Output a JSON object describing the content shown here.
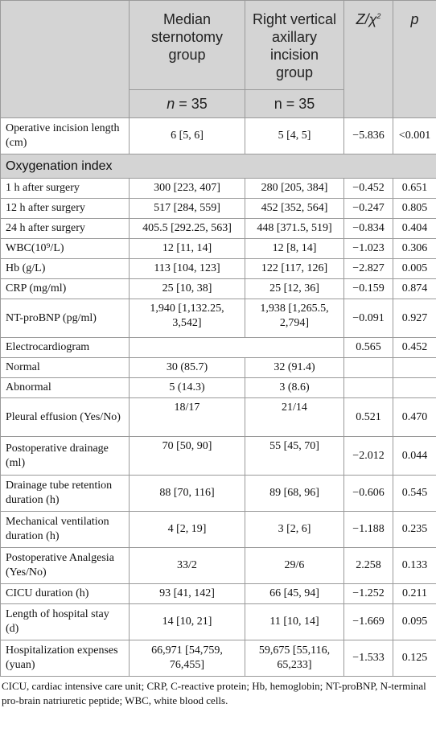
{
  "header": {
    "col1": "",
    "col2": "Median sternotomy group",
    "col3": "Right vertical axillary incision group",
    "col4_stat": "Z/χ²",
    "col5_p": "p",
    "n2": "n = 35",
    "n3": "n = 35"
  },
  "rows": [
    {
      "type": "data",
      "label": "Operative incision length (cm)",
      "median": "6 [5, 6]",
      "axillary": "5 [4, 5]",
      "stat": "−5.836",
      "p": "<0.001",
      "tall": true
    },
    {
      "type": "section",
      "label": "Oxygenation index"
    },
    {
      "type": "data",
      "label": "1 h after surgery",
      "median": "300 [223, 407]",
      "axillary": "280 [205, 384]",
      "stat": "−0.452",
      "p": "0.651"
    },
    {
      "type": "data",
      "label": "12 h after surgery",
      "median": "517 [284, 559]",
      "axillary": "452 [352, 564]",
      "stat": "−0.247",
      "p": "0.805"
    },
    {
      "type": "data",
      "label": "24 h after surgery",
      "median": "405.5 [292.25, 563]",
      "axillary": "448 [371.5, 519]",
      "stat": "−0.834",
      "p": "0.404"
    },
    {
      "type": "data",
      "label": "WBC(10⁹/L)",
      "median": "12 [11, 14]",
      "axillary": "12 [8, 14]",
      "stat": "−1.023",
      "p": "0.306"
    },
    {
      "type": "data",
      "label": "Hb (g/L)",
      "median": "113 [104, 123]",
      "axillary": "122 [117, 126]",
      "stat": "−2.827",
      "p": "0.005"
    },
    {
      "type": "data",
      "label": "CRP (mg/ml)",
      "median": "25 [10, 38]",
      "axillary": "25 [12, 36]",
      "stat": "−0.159",
      "p": "0.874"
    },
    {
      "type": "data",
      "label": "NT-proBNP (pg/ml)",
      "median": "1,940 [1,132.25, 3,542]",
      "axillary": "1,938 [1,265.5, 2,794]",
      "stat": "−0.091",
      "p": "0.927",
      "tall": true,
      "topalign": true
    },
    {
      "type": "data",
      "label": "Electrocardiogram",
      "median": "",
      "axillary": "",
      "stat": "0.565",
      "p": "0.452"
    },
    {
      "type": "data",
      "label": "Normal",
      "median": "30 (85.7)",
      "axillary": "32 (91.4)",
      "stat": "",
      "p": ""
    },
    {
      "type": "data",
      "label": "Abnormal",
      "median": "5 (14.3)",
      "axillary": "3 (8.6)",
      "stat": "",
      "p": ""
    },
    {
      "type": "data",
      "label": "Pleural effusion (Yes/No)",
      "median": "18/17",
      "axillary": "21/14",
      "stat": "0.521",
      "p": "0.470",
      "tall": true,
      "topalign": true
    },
    {
      "type": "data",
      "label": "Postoperative drainage (ml)",
      "median": "70 [50, 90]",
      "axillary": "55 [45, 70]",
      "stat": "−2.012",
      "p": "0.044",
      "tall": true,
      "topalign": true
    },
    {
      "type": "data",
      "label": "Drainage tube retention duration (h)",
      "median": "88 [70, 116]",
      "axillary": "89 [68, 96]",
      "stat": "−0.606",
      "p": "0.545",
      "tall": true
    },
    {
      "type": "data",
      "label": "Mechanical ventilation duration (h)",
      "median": "4 [2, 19]",
      "axillary": "3 [2, 6]",
      "stat": "−1.188",
      "p": "0.235",
      "tall": true
    },
    {
      "type": "data",
      "label": "Postoperative Analgesia (Yes/No)",
      "median": "33/2",
      "axillary": "29/6",
      "stat": "2.258",
      "p": "0.133",
      "tall": true
    },
    {
      "type": "data",
      "label": "CICU duration (h)",
      "median": "93 [41, 142]",
      "axillary": "66 [45, 94]",
      "stat": "−1.252",
      "p": "0.211"
    },
    {
      "type": "data",
      "label": "Length of hospital stay (d)",
      "median": "14 [10, 21]",
      "axillary": "11 [10, 14]",
      "stat": "−1.669",
      "p": "0.095",
      "tall": true
    },
    {
      "type": "data",
      "label": "Hospitalization expenses (yuan)",
      "median": "66,971 [54,759, 76,455]",
      "axillary": "59,675 [55,116, 65,233]",
      "stat": "−1.533",
      "p": "0.125",
      "tall": true
    }
  ],
  "footnote": "CICU, cardiac intensive care unit; CRP, C-reactive protein; Hb, hemoglobin; NT-proBNP, N-terminal pro-brain natriuretic peptide; WBC, white blood cells."
}
